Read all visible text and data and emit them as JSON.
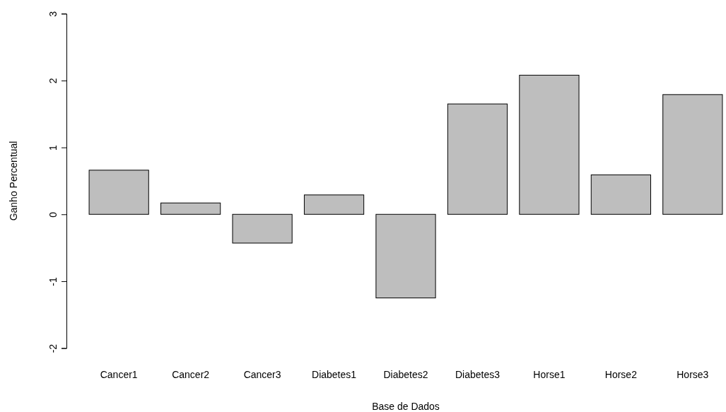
{
  "chart_data": {
    "type": "bar",
    "xlabel": "Base de Dados",
    "ylabel": "Ganho Percentual",
    "categories": [
      "Cancer1",
      "Cancer2",
      "Cancer3",
      "Diabetes1",
      "Diabetes2",
      "Diabetes3",
      "Horse1",
      "Horse2",
      "Horse3"
    ],
    "values": [
      0.66,
      0.17,
      -0.43,
      0.29,
      -1.25,
      1.65,
      2.08,
      0.59,
      1.79
    ],
    "color": "#bebebe",
    "ylim": [
      -2,
      3
    ],
    "yticks": [
      -2,
      -1,
      0,
      1,
      2,
      3
    ]
  }
}
